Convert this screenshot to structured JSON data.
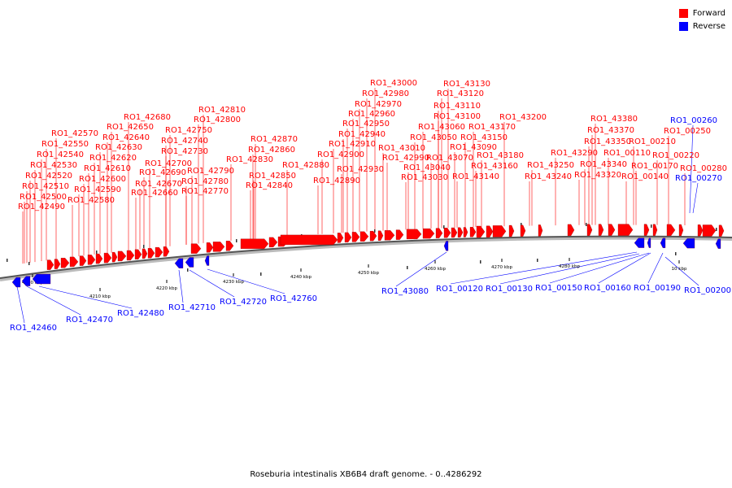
{
  "legend": {
    "forward_label": "Forward",
    "reverse_label": "Reverse",
    "forward_color": "#ff0000",
    "reverse_color": "#0000ff"
  },
  "caption": "Roseburia intestinalis XB6B4 draft genome. - 0..4286292",
  "axis_labels": [
    "4200 kbp",
    "4210 kbp",
    "4220 kbp",
    "4230 kbp",
    "4240 kbp",
    "4250 kbp",
    "4260 kbp",
    "4270 kbp",
    "4280 kbp",
    "10 kbp"
  ],
  "forward_genes": [
    "RO1_42490",
    "RO1_42500",
    "RO1_42510",
    "RO1_42520",
    "RO1_42530",
    "RO1_42540",
    "RO1_42550",
    "RO1_42570",
    "RO1_42580",
    "RO1_42590",
    "RO1_42600",
    "RO1_42610",
    "RO1_42620",
    "RO1_42630",
    "RO1_42640",
    "RO1_42650",
    "RO1_42680",
    "RO1_42660",
    "RO1_42670",
    "RO1_42690",
    "RO1_42700",
    "RO1_42730",
    "RO1_42740",
    "RO1_42750",
    "RO1_42770",
    "RO1_42780",
    "RO1_42790",
    "RO1_42800",
    "RO1_42810",
    "RO1_42830",
    "RO1_42840",
    "RO1_42850",
    "RO1_42860",
    "RO1_42870",
    "RO1_42880",
    "RO1_42890",
    "RO1_42900",
    "RO1_42910",
    "RO1_42930",
    "RO1_42940",
    "RO1_42950",
    "RO1_42960",
    "RO1_42970",
    "RO1_42980",
    "RO1_43000",
    "RO1_42990",
    "RO1_43010",
    "RO1_43030",
    "RO1_43040",
    "RO1_43050",
    "RO1_43060",
    "RO1_43070",
    "RO1_43090",
    "RO1_43100",
    "RO1_43110",
    "RO1_43120",
    "RO1_43130",
    "RO1_43140",
    "RO1_43150",
    "RO1_43160",
    "RO1_43170",
    "RO1_43180",
    "RO1_43200",
    "RO1_43240",
    "RO1_43250",
    "RO1_43290",
    "RO1_43320",
    "RO1_43340",
    "RO1_43350",
    "RO1_43370",
    "RO1_43380",
    "RO1_00110",
    "RO1_00140",
    "RO1_00170",
    "RO1_00210",
    "RO1_00220",
    "RO1_00250",
    "RO1_00280"
  ],
  "reverse_genes": [
    "RO1_42460",
    "RO1_42470",
    "RO1_42480",
    "RO1_42710",
    "RO1_42720",
    "RO1_42760",
    "RO1_43080",
    "RO1_00120",
    "RO1_00130",
    "RO1_00150",
    "RO1_00160",
    "RO1_00190",
    "RO1_00200",
    "RO1_00260",
    "RO1_00270"
  ]
}
